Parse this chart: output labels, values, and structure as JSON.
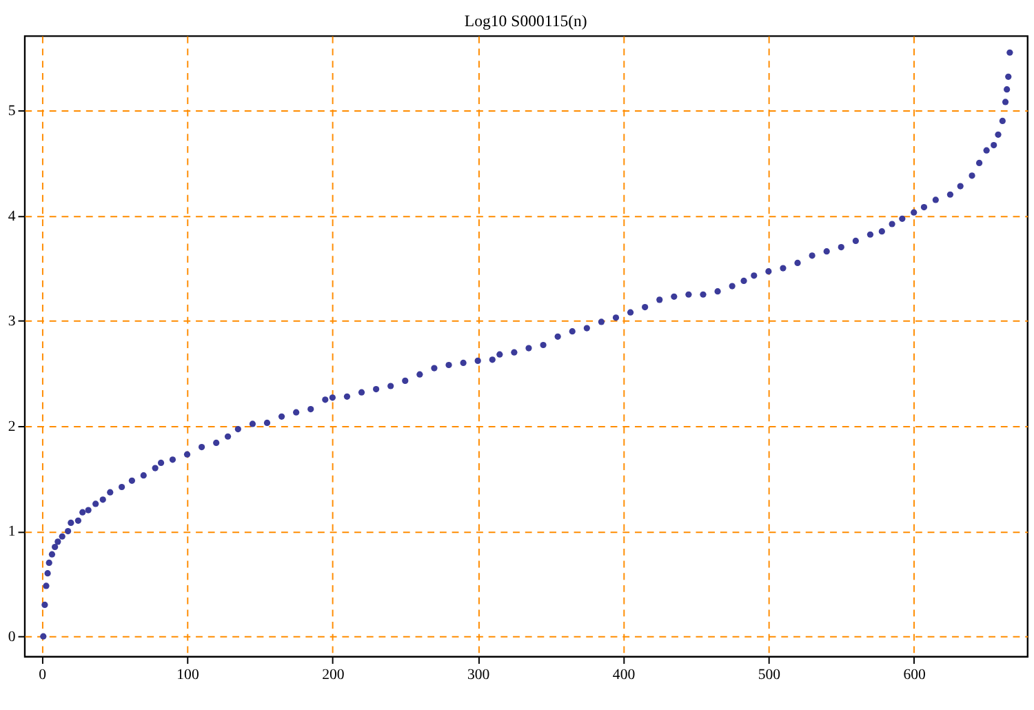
{
  "chart_data": {
    "type": "scatter",
    "title": "Log10 S000115(n)",
    "x": [
      1,
      2,
      3,
      4,
      5,
      7,
      9,
      11,
      14,
      18,
      20,
      25,
      28,
      32,
      37,
      42,
      47,
      55,
      62,
      70,
      78,
      82,
      90,
      100,
      110,
      120,
      128,
      135,
      145,
      155,
      165,
      175,
      185,
      195,
      200,
      210,
      220,
      230,
      240,
      250,
      260,
      270,
      280,
      290,
      300,
      310,
      315,
      325,
      335,
      345,
      355,
      365,
      375,
      385,
      395,
      405,
      415,
      425,
      435,
      445,
      455,
      465,
      475,
      483,
      490,
      500,
      510,
      520,
      530,
      540,
      550,
      560,
      570,
      578,
      585,
      592,
      600,
      607,
      615,
      625,
      632,
      640,
      645,
      650,
      655,
      658,
      661,
      663,
      664,
      665,
      666
    ],
    "series": [
      {
        "color": "#3b3b9a",
        "values": [
          0,
          0.3,
          0.48,
          0.6,
          0.7,
          0.78,
          0.85,
          0.9,
          0.95,
          1.0,
          1.08,
          1.1,
          1.18,
          1.2,
          1.26,
          1.3,
          1.37,
          1.42,
          1.48,
          1.53,
          1.6,
          1.65,
          1.68,
          1.73,
          1.8,
          1.84,
          1.9,
          1.97,
          2.02,
          2.03,
          2.09,
          2.13,
          2.16,
          2.25,
          2.27,
          2.28,
          2.32,
          2.35,
          2.38,
          2.43,
          2.49,
          2.55,
          2.58,
          2.6,
          2.62,
          2.63,
          2.68,
          2.7,
          2.74,
          2.77,
          2.85,
          2.9,
          2.93,
          2.99,
          3.03,
          3.08,
          3.13,
          3.2,
          3.23,
          3.25,
          3.25,
          3.28,
          3.33,
          3.38,
          3.43,
          3.47,
          3.5,
          3.55,
          3.62,
          3.66,
          3.7,
          3.76,
          3.82,
          3.85,
          3.92,
          3.97,
          4.03,
          4.08,
          4.15,
          4.2,
          4.28,
          4.38,
          4.5,
          4.62,
          4.67,
          4.77,
          4.9,
          5.08,
          5.2,
          5.32,
          5.55
        ]
      }
    ],
    "xlim": [
      -12,
      678
    ],
    "ylim": [
      -0.19,
      5.71
    ],
    "xticks": [
      0,
      100,
      200,
      300,
      400,
      500,
      600
    ],
    "yticks": [
      0,
      1,
      2,
      3,
      4,
      5
    ],
    "grid": true,
    "marker": "circle"
  }
}
